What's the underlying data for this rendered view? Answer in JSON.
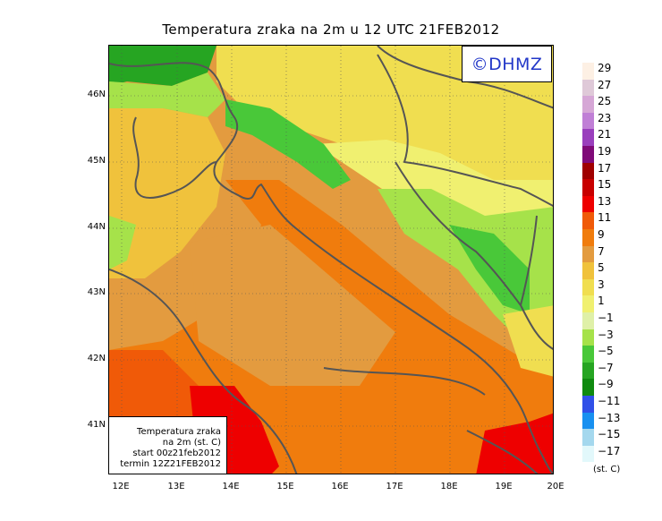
{
  "title": "Temperatura zraka na 2m u 12 UTC 21FEB2012",
  "logo_text": "©DHMZ",
  "info_box": {
    "line1": "Temperatura zraka",
    "line2": "na 2m (st. C)",
    "line3": "start 00z21feb2012",
    "line4": "termin 12Z21FEB2012"
  },
  "lat_labels": [
    "46N",
    "45N",
    "44N",
    "43N",
    "42N",
    "41N"
  ],
  "lon_labels": [
    "12E",
    "13E",
    "14E",
    "15E",
    "16E",
    "17E",
    "18E",
    "19E",
    "20E"
  ],
  "legend": {
    "unit": "(st. C)",
    "labels": [
      "29",
      "27",
      "25",
      "23",
      "21",
      "19",
      "17",
      "15",
      "13",
      "11",
      "9",
      "7",
      "5",
      "3",
      "1",
      "−1",
      "−3",
      "−5",
      "−7",
      "−9",
      "−11",
      "−13",
      "−15",
      "−17"
    ],
    "colors": [
      "#fdf0e4",
      "#dfc9d8",
      "#d6a7d6",
      "#c07fd6",
      "#9a3fbd",
      "#7f0a78",
      "#a00000",
      "#c80000",
      "#ee0000",
      "#f05a08",
      "#f07c0d",
      "#e39b3f",
      "#f0c23c",
      "#f0de50",
      "#f0f070",
      "#dff0a8",
      "#a6e24a",
      "#49c839",
      "#26a522",
      "#0f8a0f",
      "#3050e8",
      "#1890f0",
      "#a4d8ee",
      "#e2f8fb"
    ]
  },
  "chart_data": {
    "type": "heatmap",
    "title": "Temperatura zraka na 2m u 12 UTC 21FEB2012",
    "variable": "Temperatura zraka na 2m (st. C)",
    "x_axis_ticks": [
      "12E",
      "13E",
      "14E",
      "15E",
      "16E",
      "17E",
      "18E",
      "19E",
      "20E"
    ],
    "y_axis_ticks": [
      "46N",
      "45N",
      "44N",
      "43N",
      "42N",
      "41N"
    ],
    "colorbar_levels": [
      -17,
      -15,
      -13,
      -11,
      -9,
      -7,
      -5,
      -3,
      -1,
      1,
      3,
      5,
      7,
      9,
      11,
      13,
      15,
      17,
      19,
      21,
      23,
      25,
      27,
      29
    ],
    "grid": true
  }
}
